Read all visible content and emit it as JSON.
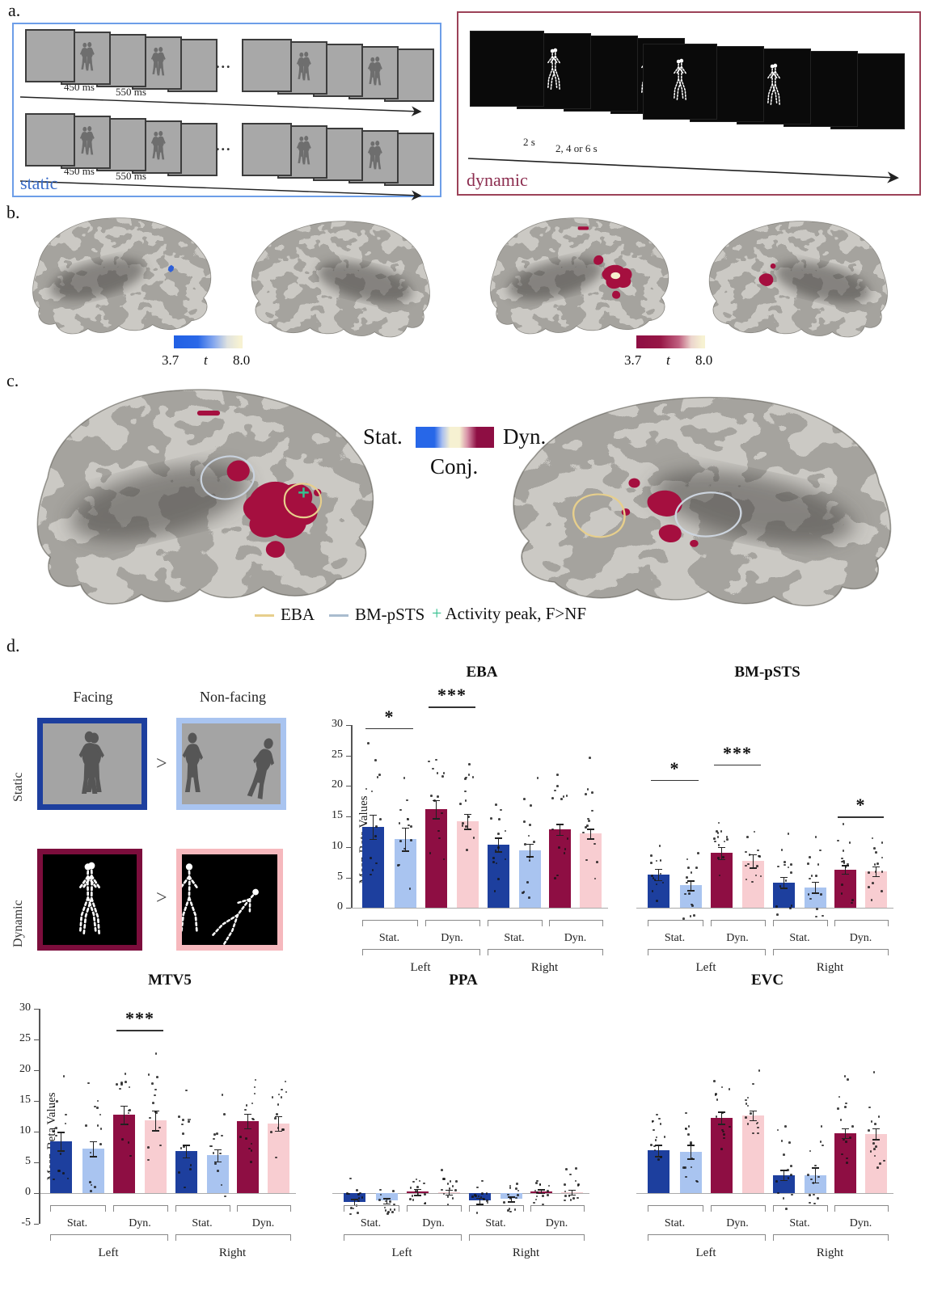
{
  "figure": {
    "panel_a_label": "a.",
    "panel_b_label": "b.",
    "panel_c_label": "c.",
    "panel_d_label": "d."
  },
  "panel_a": {
    "static": {
      "label": "static",
      "duration_stim": "450 ms",
      "duration_isi": "550 ms",
      "ellipsis": "...",
      "fixation": "+"
    },
    "dynamic": {
      "label": "dynamic",
      "duration_stim": "2 s",
      "duration_isi": "2, 4 or 6 s",
      "ellipsis": "..."
    }
  },
  "panel_b": {
    "colorbar_min": "3.7",
    "colorbar_stat": "t",
    "colorbar_max": "8.0"
  },
  "panel_c": {
    "legend": {
      "stat": "Stat.",
      "dyn": "Dyn.",
      "conj": "Conj."
    },
    "roi_legend": {
      "eba": "EBA",
      "bm_psts": "BM-pSTS",
      "peak_glyph": "+",
      "peak": "Activity peak, F>NF"
    }
  },
  "panel_d": {
    "col_facing": "Facing",
    "col_nonfacing": "Non-facing",
    "row_static": "Static",
    "row_dynamic": "Dynamic",
    "greater": ">"
  },
  "colors": {
    "static_box": "#6d9ee8",
    "static_label": "#3a6cc8",
    "dynamic_box": "#9c4258",
    "dynamic_label": "#8c2d4f",
    "bar_facing_static": "#1d3f9e",
    "bar_nonfacing_static": "#a9c4f0",
    "bar_facing_dynamic": "#8e0e43",
    "bar_nonfacing_dynamic": "#f8cdd1",
    "blue_map": "#2160e4",
    "red_map": "#8e0e43",
    "colorbar_cream": "#f7f2d2",
    "eba_outline": "#e7cf8c",
    "bm_psts_outline": "#c9d2de",
    "peak_green": "#35c08f"
  },
  "chart_data": {
    "charts": [
      {
        "type": "bar",
        "title": "EBA",
        "ylabel": "Mean Beta Values",
        "yticks": [
          0,
          5,
          10,
          15,
          20,
          25,
          30
        ],
        "ylim": [
          -5,
          35
        ],
        "group_labels": [
          "Stat.",
          "Dyn.",
          "Stat.",
          "Dyn."
        ],
        "hemi_labels": [
          "Left",
          "Right"
        ],
        "values": [
          13.3,
          11.3,
          16.2,
          14.2,
          10.4,
          9.5,
          12.9,
          12.2
        ],
        "errors": [
          2.0,
          1.9,
          1.5,
          1.2,
          1.1,
          1.0,
          0.9,
          0.8
        ],
        "sig": [
          {
            "pair": 0,
            "text": "*",
            "y": 29.5
          },
          {
            "pair": 1,
            "text": "***",
            "y": 33
          }
        ],
        "dot_spread": 8.5
      },
      {
        "type": "bar",
        "title": "BM-pSTS",
        "ylabel": "",
        "yticks": [],
        "ylim": [
          -5,
          35
        ],
        "group_labels": [
          "Stat.",
          "Dyn.",
          "Stat.",
          "Dyn."
        ],
        "hemi_labels": [
          "Left",
          "Right"
        ],
        "values": [
          5.5,
          3.7,
          9.0,
          7.7,
          4.2,
          3.4,
          6.3,
          6.0
        ],
        "errors": [
          0.9,
          0.8,
          1.0,
          1.1,
          0.9,
          0.9,
          0.7,
          0.8
        ],
        "sig": [
          {
            "pair": 0,
            "text": "*",
            "y": 21
          },
          {
            "pair": 1,
            "text": "***",
            "y": 23.5
          },
          {
            "pair": 3,
            "text": "*",
            "y": 15
          }
        ],
        "dot_spread": 5.5
      },
      {
        "type": "bar",
        "title": "MTV5",
        "ylabel": "Mean Beta Values",
        "yticks": [
          -5,
          0,
          5,
          10,
          15,
          20,
          25,
          30
        ],
        "ylim": [
          -5,
          31
        ],
        "group_labels": [
          "Stat.",
          "Dyn.",
          "Stat.",
          "Dyn."
        ],
        "hemi_labels": [
          "Left",
          "Right"
        ],
        "values": [
          8.4,
          7.2,
          12.7,
          11.8,
          6.8,
          6.1,
          11.7,
          11.3
        ],
        "errors": [
          1.5,
          1.2,
          1.5,
          1.6,
          1.0,
          1.0,
          1.2,
          1.2
        ],
        "sig": [
          {
            "pair": 1,
            "text": "***",
            "y": 26.5
          }
        ],
        "dot_spread": 7.0
      },
      {
        "type": "bar",
        "title": "PPA",
        "ylabel": "",
        "yticks": [],
        "ylim": [
          -5,
          31
        ],
        "group_labels": [
          "Stat.",
          "Dyn.",
          "Stat.",
          "Dyn."
        ],
        "hemi_labels": [
          "Left",
          "Right"
        ],
        "values": [
          -1.5,
          -1.3,
          0.15,
          0.1,
          -1.3,
          -1.0,
          0.25,
          0.1
        ],
        "errors": [
          0.5,
          0.4,
          0.5,
          0.4,
          0.5,
          0.4,
          0.3,
          0.4
        ],
        "sig": [],
        "dot_spread": 2.2
      },
      {
        "type": "bar",
        "title": "EVC",
        "ylabel": "",
        "yticks": [],
        "ylim": [
          -5,
          31
        ],
        "group_labels": [
          "Stat.",
          "Dyn.",
          "Stat.",
          "Dyn."
        ],
        "hemi_labels": [
          "Left",
          "Right"
        ],
        "values": [
          6.9,
          6.7,
          12.2,
          12.6,
          2.9,
          2.9,
          9.7,
          9.6
        ],
        "errors": [
          0.9,
          1.1,
          1.0,
          0.8,
          0.8,
          1.2,
          0.8,
          0.9
        ],
        "sig": [],
        "dot_spread": 6.0
      }
    ]
  }
}
